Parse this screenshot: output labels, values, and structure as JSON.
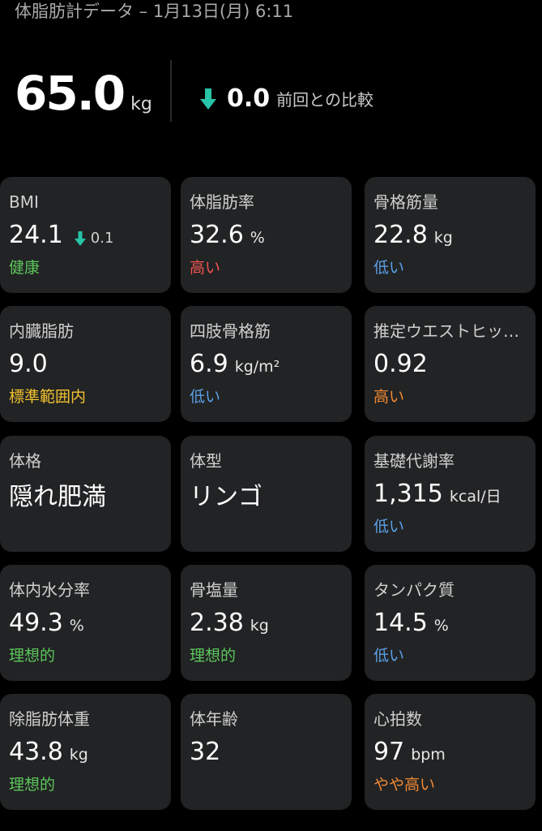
{
  "header": {
    "title": "体脂肪計データ – 1月13日(月) 6:11"
  },
  "weight": {
    "value": "65.0",
    "unit": "kg",
    "change_value": "0.0",
    "change_label": "前回との比較"
  },
  "colors": {
    "good": "#5cc75c",
    "high": "#f05552",
    "low": "#5aa0e8",
    "warn": "#f2c22e",
    "orange": "#f08a35",
    "arrow": "#27c4a8"
  },
  "cards": {
    "bmi": {
      "label": "BMI",
      "value": "24.1",
      "change": "0.1",
      "status": "健康"
    },
    "body_fat": {
      "label": "体脂肪率",
      "value": "32.6",
      "unit": "%",
      "status": "高い"
    },
    "muscle": {
      "label": "骨格筋量",
      "value": "22.8",
      "unit": "kg",
      "status": "低い"
    },
    "visceral": {
      "label": "内臓脂肪",
      "value": "9.0",
      "status": "標準範囲内"
    },
    "limb": {
      "label": "四肢骨格筋",
      "value": "6.9",
      "unit": "kg/m²",
      "status": "低い"
    },
    "waist_hip": {
      "label": "推定ウエストヒップ比",
      "value": "0.92",
      "status": "高い"
    },
    "physique": {
      "label": "体格",
      "value": "隠れ肥満"
    },
    "shape": {
      "label": "体型",
      "value": "リンゴ"
    },
    "bmr": {
      "label": "基礎代謝率",
      "value": "1,315",
      "unit": "kcal/日",
      "status": "低い"
    },
    "water": {
      "label": "体内水分率",
      "value": "49.3",
      "unit": "%",
      "status": "理想的"
    },
    "bone": {
      "label": "骨塩量",
      "value": "2.38",
      "unit": "kg",
      "status": "理想的"
    },
    "protein": {
      "label": "タンパク質",
      "value": "14.5",
      "unit": "%",
      "status": "低い"
    },
    "lean": {
      "label": "除脂肪体重",
      "value": "43.8",
      "unit": "kg",
      "status": "理想的"
    },
    "body_age": {
      "label": "体年齢",
      "value": "32"
    },
    "heart_rate": {
      "label": "心拍数",
      "value": "97",
      "unit": "bpm",
      "status": "やや高い"
    }
  }
}
